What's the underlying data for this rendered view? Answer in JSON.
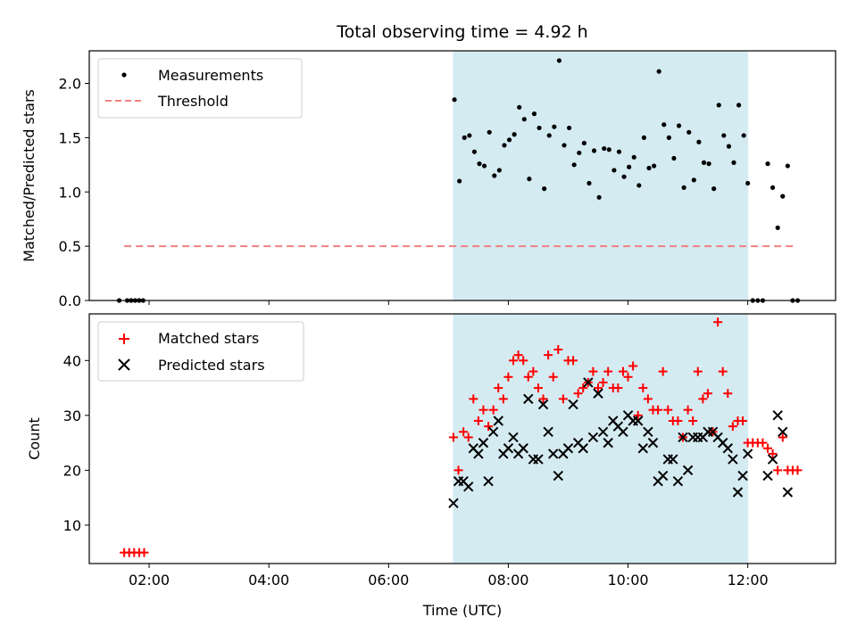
{
  "chart_data": [
    {
      "type": "scatter",
      "title": "Total observing time = 4.92 h",
      "xlabel": "",
      "ylabel": "Matched/Predicted stars",
      "xlim": [
        "01:00",
        "13:28"
      ],
      "ylim": [
        0,
        2.3
      ],
      "yticks": [
        "0.0",
        "0.5",
        "1.0",
        "1.5",
        "2.0"
      ],
      "shaded_interval": {
        "from": "07:05",
        "to": "12:00",
        "color": "#add8e6"
      },
      "legend_position": "upper-left",
      "series": [
        {
          "name": "Measurements",
          "marker": "dot",
          "color": "#000000",
          "points": [
            [
              "01:30",
              0
            ],
            [
              "01:38",
              0
            ],
            [
              "01:42",
              0
            ],
            [
              "01:46",
              0
            ],
            [
              "01:50",
              0
            ],
            [
              "01:54",
              0
            ],
            [
              "07:06",
              1.85
            ],
            [
              "07:11",
              1.1
            ],
            [
              "07:16",
              1.5
            ],
            [
              "07:21",
              1.52
            ],
            [
              "07:26",
              1.37
            ],
            [
              "07:31",
              1.26
            ],
            [
              "07:36",
              1.24
            ],
            [
              "07:41",
              1.55
            ],
            [
              "07:46",
              1.15
            ],
            [
              "07:51",
              1.2
            ],
            [
              "07:56",
              1.43
            ],
            [
              "08:01",
              1.48
            ],
            [
              "08:06",
              1.53
            ],
            [
              "08:11",
              1.78
            ],
            [
              "08:16",
              1.67
            ],
            [
              "08:21",
              1.12
            ],
            [
              "08:26",
              1.72
            ],
            [
              "08:31",
              1.59
            ],
            [
              "08:36",
              1.03
            ],
            [
              "08:41",
              1.52
            ],
            [
              "08:46",
              1.6
            ],
            [
              "08:51",
              2.21
            ],
            [
              "08:56",
              1.43
            ],
            [
              "09:01",
              1.59
            ],
            [
              "09:06",
              1.25
            ],
            [
              "09:11",
              1.36
            ],
            [
              "09:16",
              1.45
            ],
            [
              "09:21",
              1.08
            ],
            [
              "09:26",
              1.38
            ],
            [
              "09:31",
              0.95
            ],
            [
              "09:36",
              1.4
            ],
            [
              "09:41",
              1.39
            ],
            [
              "09:46",
              1.2
            ],
            [
              "09:51",
              1.37
            ],
            [
              "09:56",
              1.14
            ],
            [
              "10:01",
              1.23
            ],
            [
              "10:06",
              1.32
            ],
            [
              "10:11",
              1.06
            ],
            [
              "10:16",
              1.5
            ],
            [
              "10:21",
              1.22
            ],
            [
              "10:26",
              1.24
            ],
            [
              "10:31",
              2.11
            ],
            [
              "10:36",
              1.62
            ],
            [
              "10:41",
              1.5
            ],
            [
              "10:46",
              1.31
            ],
            [
              "10:51",
              1.61
            ],
            [
              "10:56",
              1.04
            ],
            [
              "11:01",
              1.55
            ],
            [
              "11:06",
              1.11
            ],
            [
              "11:11",
              1.46
            ],
            [
              "11:16",
              1.27
            ],
            [
              "11:21",
              1.26
            ],
            [
              "11:26",
              1.03
            ],
            [
              "11:31",
              1.8
            ],
            [
              "11:36",
              1.52
            ],
            [
              "11:41",
              1.42
            ],
            [
              "11:46",
              1.27
            ],
            [
              "11:51",
              1.8
            ],
            [
              "11:56",
              1.52
            ],
            [
              "12:00",
              1.08
            ],
            [
              "12:05",
              0
            ],
            [
              "12:10",
              0
            ],
            [
              "12:15",
              0
            ],
            [
              "12:20",
              1.26
            ],
            [
              "12:25",
              1.04
            ],
            [
              "12:30",
              0.67
            ],
            [
              "12:35",
              0.96
            ],
            [
              "12:40",
              1.24
            ],
            [
              "12:45",
              0
            ],
            [
              "12:50",
              0
            ]
          ]
        },
        {
          "name": "Threshold",
          "line_style": "dashed",
          "color": "#f08080",
          "points": [
            [
              "01:35",
              0.5
            ],
            [
              "12:48",
              0.5
            ]
          ]
        }
      ]
    },
    {
      "type": "scatter",
      "title": "",
      "xlabel": "Time (UTC)",
      "ylabel": "Count",
      "xlim": [
        "01:00",
        "13:28"
      ],
      "ylim": [
        3,
        48.5
      ],
      "xticks": [
        "02:00",
        "04:00",
        "06:00",
        "08:00",
        "10:00",
        "12:00"
      ],
      "yticks": [
        "10",
        "20",
        "30",
        "40"
      ],
      "shaded_interval": {
        "from": "07:05",
        "to": "12:00",
        "color": "#add8e6"
      },
      "legend_position": "upper-left",
      "series": [
        {
          "name": "Matched stars",
          "marker": "plus",
          "color": "#ff0000",
          "points": [
            [
              "01:35",
              5
            ],
            [
              "01:40",
              5
            ],
            [
              "01:45",
              5
            ],
            [
              "01:50",
              5
            ],
            [
              "01:55",
              5
            ],
            [
              "07:05",
              26
            ],
            [
              "07:10",
              20
            ],
            [
              "07:15",
              27
            ],
            [
              "07:20",
              26
            ],
            [
              "07:25",
              33
            ],
            [
              "07:30",
              29
            ],
            [
              "07:35",
              31
            ],
            [
              "07:40",
              28
            ],
            [
              "07:45",
              31
            ],
            [
              "07:50",
              35
            ],
            [
              "07:55",
              33
            ],
            [
              "08:00",
              37
            ],
            [
              "08:05",
              40
            ],
            [
              "08:10",
              41
            ],
            [
              "08:15",
              40
            ],
            [
              "08:20",
              37
            ],
            [
              "08:25",
              38
            ],
            [
              "08:30",
              35
            ],
            [
              "08:35",
              33
            ],
            [
              "08:40",
              41
            ],
            [
              "08:45",
              37
            ],
            [
              "08:50",
              42
            ],
            [
              "08:55",
              33
            ],
            [
              "09:00",
              40
            ],
            [
              "09:05",
              40
            ],
            [
              "09:10",
              34
            ],
            [
              "09:15",
              35
            ],
            [
              "09:20",
              36
            ],
            [
              "09:25",
              38
            ],
            [
              "09:30",
              35
            ],
            [
              "09:35",
              36
            ],
            [
              "09:40",
              38
            ],
            [
              "09:45",
              35
            ],
            [
              "09:50",
              35
            ],
            [
              "09:55",
              38
            ],
            [
              "10:00",
              37
            ],
            [
              "10:05",
              39
            ],
            [
              "10:10",
              30
            ],
            [
              "10:15",
              35
            ],
            [
              "10:20",
              33
            ],
            [
              "10:25",
              31
            ],
            [
              "10:30",
              31
            ],
            [
              "10:35",
              38
            ],
            [
              "10:40",
              31
            ],
            [
              "10:45",
              29
            ],
            [
              "10:50",
              29
            ],
            [
              "10:55",
              26
            ],
            [
              "11:00",
              31
            ],
            [
              "11:05",
              29
            ],
            [
              "11:10",
              38
            ],
            [
              "11:15",
              33
            ],
            [
              "11:20",
              34
            ],
            [
              "11:25",
              27
            ],
            [
              "11:30",
              47
            ],
            [
              "11:35",
              38
            ],
            [
              "11:40",
              34
            ],
            [
              "11:45",
              28
            ],
            [
              "11:50",
              29
            ],
            [
              "11:55",
              29
            ],
            [
              "12:00",
              25
            ],
            [
              "12:05",
              25
            ],
            [
              "12:10",
              25
            ],
            [
              "12:15",
              25
            ],
            [
              "12:20",
              24
            ],
            [
              "12:25",
              23
            ],
            [
              "12:30",
              20
            ],
            [
              "12:35",
              26
            ],
            [
              "12:40",
              20
            ],
            [
              "12:45",
              20
            ],
            [
              "12:50",
              20
            ]
          ]
        },
        {
          "name": "Predicted stars",
          "marker": "x",
          "color": "#000000",
          "points": [
            [
              "07:05",
              14
            ],
            [
              "07:10",
              18
            ],
            [
              "07:15",
              18
            ],
            [
              "07:20",
              17
            ],
            [
              "07:25",
              24
            ],
            [
              "07:30",
              23
            ],
            [
              "07:35",
              25
            ],
            [
              "07:40",
              18
            ],
            [
              "07:45",
              27
            ],
            [
              "07:50",
              29
            ],
            [
              "07:55",
              23
            ],
            [
              "08:00",
              24
            ],
            [
              "08:05",
              26
            ],
            [
              "08:10",
              23
            ],
            [
              "08:15",
              24
            ],
            [
              "08:20",
              33
            ],
            [
              "08:25",
              22
            ],
            [
              "08:30",
              22
            ],
            [
              "08:35",
              32
            ],
            [
              "08:40",
              27
            ],
            [
              "08:45",
              23
            ],
            [
              "08:50",
              19
            ],
            [
              "08:55",
              23
            ],
            [
              "09:00",
              24
            ],
            [
              "09:05",
              32
            ],
            [
              "09:10",
              25
            ],
            [
              "09:15",
              24
            ],
            [
              "09:20",
              36
            ],
            [
              "09:25",
              26
            ],
            [
              "09:30",
              34
            ],
            [
              "09:35",
              27
            ],
            [
              "09:40",
              25
            ],
            [
              "09:45",
              29
            ],
            [
              "09:50",
              28
            ],
            [
              "09:55",
              27
            ],
            [
              "10:00",
              30
            ],
            [
              "10:05",
              29
            ],
            [
              "10:10",
              29
            ],
            [
              "10:15",
              24
            ],
            [
              "10:20",
              27
            ],
            [
              "10:25",
              25
            ],
            [
              "10:30",
              18
            ],
            [
              "10:35",
              19
            ],
            [
              "10:40",
              22
            ],
            [
              "10:45",
              22
            ],
            [
              "10:50",
              18
            ],
            [
              "10:55",
              26
            ],
            [
              "11:00",
              20
            ],
            [
              "11:05",
              26
            ],
            [
              "11:10",
              26
            ],
            [
              "11:15",
              26
            ],
            [
              "11:20",
              27
            ],
            [
              "11:25",
              27
            ],
            [
              "11:30",
              26
            ],
            [
              "11:35",
              25
            ],
            [
              "11:40",
              24
            ],
            [
              "11:45",
              22
            ],
            [
              "11:50",
              16
            ],
            [
              "11:55",
              19
            ],
            [
              "12:00",
              23
            ],
            [
              "12:20",
              19
            ],
            [
              "12:25",
              22
            ],
            [
              "12:30",
              30
            ],
            [
              "12:35",
              27
            ],
            [
              "12:40",
              16
            ]
          ]
        }
      ]
    }
  ]
}
